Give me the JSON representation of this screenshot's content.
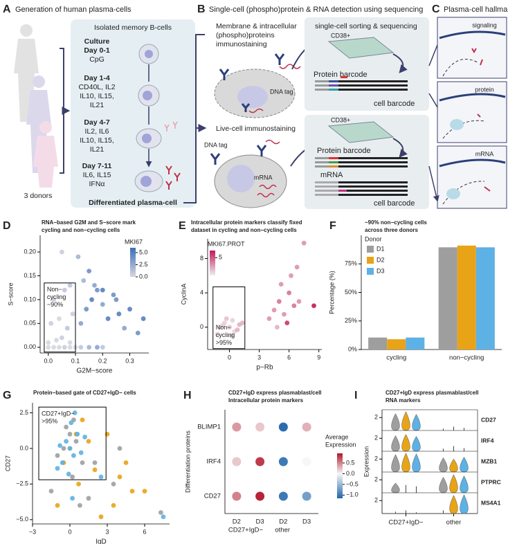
{
  "panels": {
    "A": {
      "letter": "A",
      "title": "Generation of human plasma-cells",
      "box_title": "Isolated memory B-cells",
      "steps": [
        {
          "head": [
            "Culture",
            "Day 0-1"
          ],
          "body": [
            "CpG"
          ]
        },
        {
          "head": [
            "Day 1-4"
          ],
          "body": [
            "CD40L, IL2",
            "IL10, IL15,",
            "IL21"
          ]
        },
        {
          "head": [
            "Day 4-7"
          ],
          "body": [
            "IL2, IL6",
            "IL10, IL15,",
            "IL21"
          ]
        },
        {
          "head": [
            "Day 7-11"
          ],
          "body": [
            "IL6, IL15",
            "IFNα"
          ]
        }
      ],
      "result": "Differentiated plasma-cell",
      "donors": "3 donors"
    },
    "B": {
      "letter": "B",
      "title": "Single-cell (phospho)protein & RNA detection using sequencing",
      "fixed": [
        "Membrane & intracellular",
        "(phospho)proteins",
        "immunostaining"
      ],
      "live": "Live-cell immunostaining",
      "dna_tag": "DNA tag",
      "mrna": "mRNA",
      "sorting": "single-cell sorting & sequencing",
      "cd38": "CD38+",
      "protein_barcode": "Protein barcode",
      "cell_barcode": "cell barcode"
    },
    "C": {
      "letter": "C",
      "title": "Plasma-cell hallmarks",
      "boxes": [
        "signaling",
        "protein",
        "mRNA"
      ]
    }
  },
  "chart_data": [
    {
      "type": "scatter",
      "letter": "D",
      "title": [
        "RNA−based G2M and S−score mark",
        "cycling and non−cycling cells"
      ],
      "xlabel": "G2M−score",
      "ylabel": "S−score",
      "xlim": [
        -0.03,
        0.37
      ],
      "ylim": [
        -0.012,
        0.235
      ],
      "xticks": [
        {
          "value": 0,
          "label": "0.0"
        },
        0.1,
        0.2,
        0.3
      ],
      "yticks": [
        {
          "value": 0,
          "label": "0.00"
        },
        0.05,
        {
          "value": 0.1,
          "label": "0.10"
        },
        0.15,
        {
          "value": 0.2,
          "label": "0.20"
        }
      ],
      "x": [
        0,
        0.02,
        0.04,
        0.06,
        0.08,
        0.1,
        0.12,
        0.15,
        0.18,
        0.2,
        0,
        0.03,
        0.05,
        0.08,
        0.01,
        0.04,
        0.07,
        0.09,
        0.02,
        0.06,
        0.12,
        0.14,
        0.16,
        0.18,
        0.2,
        0.22,
        0.24,
        0.26,
        0.28,
        0.3,
        0.33,
        0.35,
        0.13,
        0.15,
        0.17,
        0.11,
        0.2,
        0.25,
        0.05,
        0.08
      ],
      "y": [
        0,
        0,
        0,
        0,
        0,
        0,
        0,
        0,
        0,
        0,
        0.01,
        0.015,
        0.02,
        0.01,
        0.05,
        0.06,
        0.04,
        0.07,
        0.1,
        0.12,
        0.05,
        0.08,
        0.1,
        0.12,
        0.09,
        0.06,
        0.11,
        0.07,
        0.04,
        0.08,
        0.03,
        0.06,
        0.14,
        0.16,
        0.13,
        0.19,
        0.12,
        0.1,
        0.2,
        0.13
      ],
      "color_values": [
        0,
        0,
        0,
        0.5,
        0,
        0,
        1,
        2,
        3,
        1,
        0,
        0,
        0.5,
        0,
        0.5,
        0,
        1,
        0.5,
        0.5,
        1,
        3,
        4,
        5,
        4,
        3,
        5,
        4,
        5,
        3,
        5,
        4,
        5,
        2,
        4,
        3,
        2,
        5,
        4,
        0.5,
        1
      ],
      "colormap": [
        "#d6d6e0",
        "#3a6fb7"
      ],
      "colorbar": {
        "title": "MKI67",
        "lim": [
          0,
          6
        ],
        "ticks": [
          {
            "value": 0,
            "label": "0.0"
          },
          2.5,
          {
            "value": 5,
            "label": "5.0"
          }
        ]
      },
      "gate": {
        "x": [
          -0.015,
          0.1
        ],
        "y": [
          -0.01,
          0.135
        ]
      },
      "annotation": [
        "Non−",
        "cycling",
        "~90%"
      ]
    },
    {
      "type": "scatter",
      "letter": "E",
      "title": [
        "Intracellular protein markers classify fixed",
        "dataset in cycling and non−cycling cells"
      ],
      "xlabel": "p−Rb",
      "ylabel": "CyclinA",
      "xlim": [
        -2.2,
        9.3
      ],
      "ylim": [
        -2.6,
        10.3
      ],
      "xticks": [
        0,
        3,
        6,
        9
      ],
      "yticks": [
        0,
        4,
        8
      ],
      "x": [
        -1,
        -0.5,
        0,
        0.5,
        1,
        -1.2,
        -0.3,
        0.3,
        0.8,
        -0.7,
        0.2,
        1.3,
        4,
        4.5,
        5,
        5.5,
        6,
        6.2,
        6.5,
        7,
        5.8,
        5.2,
        7.5,
        8.5,
        6.8,
        4.8
      ],
      "y": [
        0,
        0.5,
        0,
        -0.5,
        0.3,
        -0.8,
        1,
        0.8,
        -0.3,
        0.2,
        -1,
        0.5,
        1,
        2,
        3,
        1.5,
        4,
        6,
        2.5,
        3,
        0.5,
        5,
        9.8,
        2.5,
        7,
        0
      ],
      "color_values": [
        1,
        1,
        1.5,
        1,
        2,
        1,
        1.5,
        1,
        2,
        1,
        1,
        2,
        3,
        3,
        4,
        3,
        4,
        3,
        4,
        3,
        6,
        3,
        3,
        7,
        3,
        2
      ],
      "colormap": [
        "#eeeeee",
        "#c2185b"
      ],
      "colorbar": {
        "title": "MKI67.PROT",
        "lim": [
          0,
          7
        ],
        "ticks": [
          5
        ]
      },
      "gate": {
        "x": [
          -1.66,
          1.55
        ],
        "y": [
          -2.5,
          4.7
        ]
      },
      "annotation": [
        "Non−",
        "cycling",
        ">95%"
      ]
    },
    {
      "type": "bar",
      "letter": "F",
      "title": [
        "~90% non−cycling cells",
        "across three donors"
      ],
      "ylabel": "Percentage (%)",
      "categories": [
        "cycling",
        "non−cycling"
      ],
      "series": [
        {
          "name": "D1",
          "color": "#9e9e9e",
          "values": [
            10.5,
            89.5
          ]
        },
        {
          "name": "D2",
          "color": "#e8a317",
          "values": [
            9,
            91
          ]
        },
        {
          "name": "D3",
          "color": "#5db1e4",
          "values": [
            10.5,
            89.5
          ]
        }
      ],
      "ylim": [
        0,
        100
      ],
      "yticks": [
        {
          "value": 0,
          "label": "0%"
        },
        {
          "value": 25,
          "label": "25%"
        },
        {
          "value": 50,
          "label": "50%"
        },
        {
          "value": 75,
          "label": "75%"
        }
      ],
      "legend": "upper left",
      "legend_title": "Donor"
    },
    {
      "type": "scatter",
      "letter": "G",
      "title": [
        "Protein−based gate of CD27+IgD− cells"
      ],
      "xlabel": "IgD",
      "ylabel": "CD27",
      "xlim": [
        -3,
        8
      ],
      "ylim": [
        -5.3,
        3.2
      ],
      "xticks": [
        {
          "value": -3,
          "label": "−3"
        },
        0,
        3,
        6
      ],
      "yticks": [
        {
          "value": -5,
          "label": "−5.0"
        },
        {
          "value": -2.5,
          "label": "−2.5"
        },
        {
          "value": 0,
          "label": "0.0"
        },
        2.5
      ],
      "series": [
        {
          "color": "#9e9e9e",
          "x": [
            -0.5,
            0,
            0.5,
            1,
            -1,
            0.2,
            -0.3,
            2,
            3.5,
            4,
            1.5,
            0.8,
            -1.5,
            0.3,
            7.3
          ],
          "y": [
            0,
            1,
            0.5,
            -1,
            -0.5,
            -2,
            1.5,
            -1,
            -2.5,
            0,
            -3.5,
            -4,
            -3,
            2,
            -4.5
          ]
        },
        {
          "color": "#e8a317",
          "x": [
            0,
            0.5,
            -0.5,
            1,
            1.5,
            2,
            3,
            4,
            5,
            6,
            -1,
            2.5,
            4.5,
            0.7,
            3.5
          ],
          "y": [
            0,
            1,
            -1,
            2,
            0.5,
            -1.5,
            1,
            -2,
            -3,
            -3,
            -4,
            -4.8,
            -1,
            -2.5,
            -4
          ]
        },
        {
          "color": "#5db1e4",
          "x": [
            0,
            -0.3,
            0.3,
            0.6,
            -0.6,
            0.1,
            -0.1,
            0.4,
            -0.8,
            0.9,
            1.2,
            -1,
            0.2,
            7.5,
            2.5
          ],
          "y": [
            0,
            0.5,
            -0.5,
            1,
            -1,
            1.8,
            -1.8,
            2.5,
            0.2,
            -0.3,
            0.8,
            -1.4,
            -3.5,
            -4.8,
            -2
          ]
        }
      ],
      "gate": {
        "x": [
          -2.5,
          2.9
        ],
        "y": [
          -2.2,
          2.9
        ]
      },
      "annotation": [
        "CD27+IgD−",
        ">95%"
      ]
    },
    {
      "type": "dot",
      "letter": "H",
      "title": [
        "CD27+IgD express plasmablast/cell",
        "Intracellular protein markers"
      ],
      "ylabel": "Differentiation proteins",
      "rows": [
        "BLIMP1",
        "IRF4",
        "CD27"
      ],
      "groups": [
        {
          "label": "CD27+IgD−",
          "columns": [
            "D2",
            "D3"
          ]
        },
        {
          "label": "other",
          "columns": [
            "D2",
            "D3"
          ]
        }
      ],
      "values": [
        [
          0.4,
          0.2,
          -1.1,
          0.3
        ],
        [
          0.2,
          0.8,
          -1.0,
          0
        ],
        [
          0.5,
          0.9,
          -1.0,
          -0.7
        ]
      ],
      "colormap": [
        "#2166ac",
        "#f7f7f7",
        "#b2182b"
      ],
      "colorbar": {
        "title": [
          "Average",
          "Expression"
        ],
        "lim": [
          -1.15,
          0.95
        ],
        "ticks": [
          0.5,
          {
            "value": 0,
            "label": "0.0"
          },
          {
            "value": -0.5,
            "label": "−0.5"
          },
          {
            "value": -1,
            "label": "−1.0"
          }
        ]
      }
    },
    {
      "type": "violin",
      "letter": "I",
      "title": [
        "CD27+IgD express plasmablast/cell",
        "RNA markers"
      ],
      "ylabel": "Expression",
      "genes": [
        "CD27",
        "IRF4",
        "MZB1",
        "PTPRC",
        "MS4A1"
      ],
      "groups": [
        "CD27+IgD−",
        "other"
      ],
      "ylim": [
        0,
        3.2
      ],
      "yticks": [
        2
      ],
      "series": [
        {
          "color": "#9e9e9e",
          "values": [
            [
              2.6,
              0.3
            ],
            [
              2.4,
              0.4
            ],
            [
              2.7,
              2.2
            ],
            [
              1.5,
              2.4
            ],
            [
              0.3,
              0.5
            ]
          ]
        },
        {
          "color": "#e8a317",
          "values": [
            [
              2.9,
              0.6
            ],
            [
              2.6,
              0.8
            ],
            [
              2.9,
              2.0
            ],
            [
              1.2,
              2.8
            ],
            [
              0.5,
              2.8
            ]
          ]
        },
        {
          "color": "#5db1e4",
          "values": [
            [
              2.5,
              0.4
            ],
            [
              2.3,
              0.5
            ],
            [
              2.8,
              2.3
            ],
            [
              1.0,
              2.6
            ],
            [
              0.2,
              2.9
            ]
          ]
        }
      ]
    }
  ]
}
